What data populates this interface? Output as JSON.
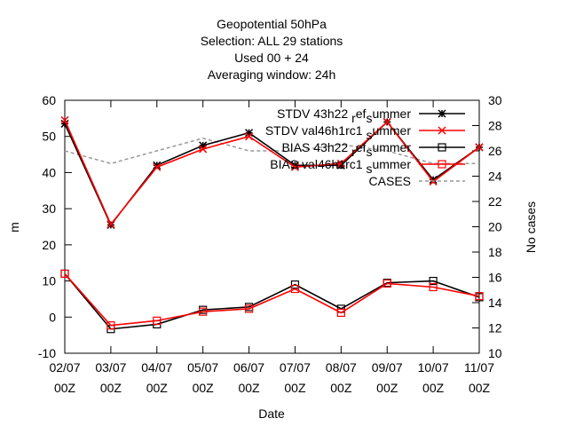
{
  "chart_data": {
    "type": "line",
    "title_lines": [
      "Geopotential 50hPa",
      "Selection: ALL      29 stations",
      "Used  00  + 24",
      "Averaging window: 24h"
    ],
    "xlabel": "Date",
    "ylabel": "m",
    "y2label": "No cases",
    "categories": [
      [
        "02/07",
        "00Z"
      ],
      [
        "03/07",
        "00Z"
      ],
      [
        "04/07",
        "00Z"
      ],
      [
        "05/07",
        "00Z"
      ],
      [
        "06/07",
        "00Z"
      ],
      [
        "07/07",
        "00Z"
      ],
      [
        "08/07",
        "00Z"
      ],
      [
        "09/07",
        "00Z"
      ],
      [
        "10/07",
        "00Z"
      ],
      [
        "11/07",
        "00Z"
      ]
    ],
    "ylim": [
      -10,
      60
    ],
    "yticks": [
      -10,
      0,
      10,
      20,
      30,
      40,
      50,
      60
    ],
    "y2lim": [
      10,
      30
    ],
    "y2ticks": [
      10,
      12,
      14,
      16,
      18,
      20,
      22,
      24,
      26,
      28,
      30
    ],
    "grid": false,
    "legend_position": "top-right",
    "series": [
      {
        "name": "STDV 43h22_ref_summer",
        "legend_parts": [
          "STDV 43h22",
          "r",
          "ef",
          "s",
          "ummer"
        ],
        "axis": "y",
        "color": "#000000",
        "marker": "star",
        "dash": "solid",
        "values": [
          53.5,
          25.5,
          42.0,
          47.5,
          51.0,
          42.0,
          42.0,
          54.0,
          38.0,
          47.0
        ]
      },
      {
        "name": "STDV val46h1rc1_summer",
        "legend_parts": [
          "STDV val46h1rc1",
          "",
          "",
          "s",
          "ummer"
        ],
        "axis": "y",
        "color": "#ff0000",
        "marker": "x",
        "dash": "solid",
        "values": [
          54.5,
          25.7,
          41.5,
          46.5,
          50.0,
          41.5,
          42.5,
          54.0,
          37.5,
          47.0
        ]
      },
      {
        "name": "BIAS 43h22_ref_summer",
        "legend_parts": [
          "BIAS 43h22",
          "r",
          "ef",
          "s",
          "ummer"
        ],
        "axis": "y",
        "color": "#000000",
        "marker": "square",
        "dash": "solid",
        "values": [
          12.0,
          -3.3,
          -2.0,
          2.0,
          2.8,
          9.0,
          2.3,
          9.5,
          10.0,
          5.5
        ]
      },
      {
        "name": "BIAS val46h1rc1_summer",
        "legend_parts": [
          "BIAS val46h1rc1",
          "",
          "",
          "s",
          "ummer"
        ],
        "axis": "y",
        "color": "#ff0000",
        "marker": "square",
        "dash": "solid",
        "values": [
          12.0,
          -2.3,
          -1.0,
          1.5,
          2.3,
          7.8,
          1.2,
          9.3,
          8.3,
          5.8
        ]
      },
      {
        "name": "CASES",
        "axis": "y2",
        "color": "#999999",
        "marker": "none",
        "dash": "dashed",
        "values": [
          26.0,
          25.0,
          26.0,
          27.0,
          26.0,
          26.0,
          26.5,
          26.0,
          25.0,
          25.0
        ]
      }
    ]
  }
}
